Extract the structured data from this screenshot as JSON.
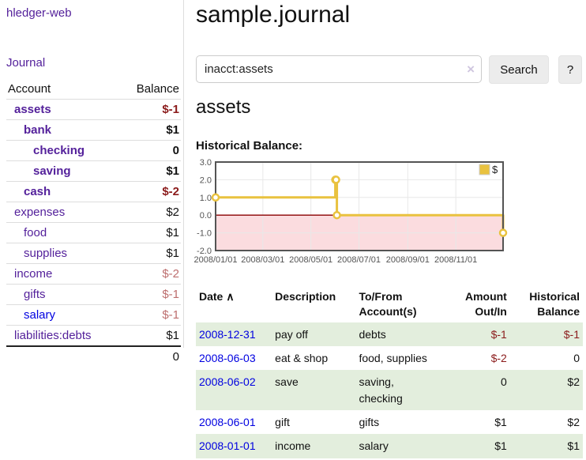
{
  "app": {
    "title": "hledger-web"
  },
  "sidebar": {
    "journal_link": "Journal",
    "accounts_table": {
      "col_account": "Account",
      "col_balance": "Balance",
      "rows": [
        {
          "account": "assets",
          "balance": "$-1"
        },
        {
          "account": "bank",
          "balance": "$1"
        },
        {
          "account": "checking",
          "balance": "0"
        },
        {
          "account": "saving",
          "balance": "$1"
        },
        {
          "account": "cash",
          "balance": "$-2"
        },
        {
          "account": "expenses",
          "balance": "$2"
        },
        {
          "account": "food",
          "balance": "$1"
        },
        {
          "account": "supplies",
          "balance": "$1"
        },
        {
          "account": "income",
          "balance": "$-2"
        },
        {
          "account": "gifts",
          "balance": "$-1"
        },
        {
          "account": "salary",
          "balance": "$-1"
        },
        {
          "account": "liabilities:debts",
          "balance": "$1"
        }
      ],
      "total": "0"
    }
  },
  "main": {
    "title": "sample.journal",
    "search": {
      "query": "inacct:assets",
      "clear_icon": "×",
      "search_button": "Search",
      "help_button": "?"
    },
    "account_heading": "assets",
    "chart_label": "Historical Balance:"
  },
  "chart_data": {
    "type": "line",
    "style": "steps",
    "title": "Historical Balance:",
    "legend": {
      "label": "$",
      "position": "top-right"
    },
    "x_range": [
      "2008-01-01",
      "2008-12-31"
    ],
    "y_range": [
      -2,
      3
    ],
    "y_ticks": [
      3.0,
      2.0,
      1.0,
      0.0,
      -1.0,
      -2.0
    ],
    "x_ticks": [
      {
        "label": "2008/01/01",
        "date": "2008-01-01"
      },
      {
        "label": "2008/03/01",
        "date": "2008-03-01"
      },
      {
        "label": "2008/05/01",
        "date": "2008-05-01"
      },
      {
        "label": "2008/07/01",
        "date": "2008-07-01"
      },
      {
        "label": "2008/09/01",
        "date": "2008-09-01"
      },
      {
        "label": "2008/11/01",
        "date": "2008-11-01"
      }
    ],
    "series": [
      {
        "name": "$",
        "points": [
          [
            "2008-01-01",
            1
          ],
          [
            "2008-06-01",
            2
          ],
          [
            "2008-06-02",
            2
          ],
          [
            "2008-06-03",
            0
          ],
          [
            "2008-12-31",
            -1
          ]
        ]
      }
    ],
    "colors": {
      "series": "#e9c23f",
      "marker_fill": "#ffffff",
      "zero_line": "#8b0000",
      "negative_region_fill": "#fbdcdf",
      "grid": "#e8e8e8",
      "border": "#545454"
    }
  },
  "register": {
    "headers": {
      "date": "Date",
      "sort_icon": "∧",
      "description": "Description",
      "tofrom": "To/From Account(s)",
      "amount": "Amount Out/In",
      "historical": "Historical Balance"
    },
    "rows": [
      {
        "date": "2008-12-31",
        "description": "pay off",
        "tofrom": "debts",
        "amount": "$-1",
        "historical": "$-1"
      },
      {
        "date": "2008-06-03",
        "description": "eat & shop",
        "tofrom": "food, supplies",
        "amount": "$-2",
        "historical": "0"
      },
      {
        "date": "2008-06-02",
        "description": "save",
        "tofrom": "saving, checking",
        "amount": "0",
        "historical": "$2"
      },
      {
        "date": "2008-06-01",
        "description": "gift",
        "tofrom": "gifts",
        "amount": "$1",
        "historical": "$2"
      },
      {
        "date": "2008-01-01",
        "description": "income",
        "tofrom": "salary",
        "amount": "$1",
        "historical": "$1"
      }
    ]
  }
}
